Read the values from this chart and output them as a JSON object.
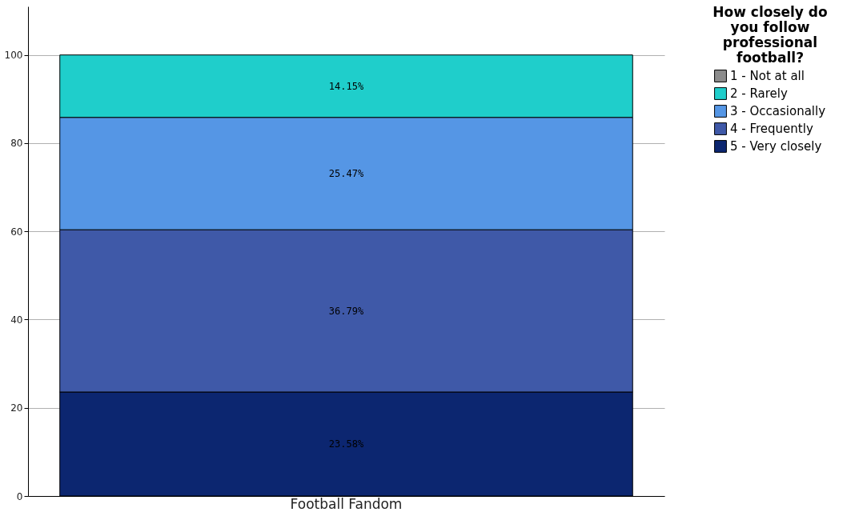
{
  "chart_data": {
    "type": "bar",
    "stacked": true,
    "categories": [
      "Football Fandom"
    ],
    "series": [
      {
        "name": "5 - Very closely",
        "color": "#0c2670",
        "values": [
          23.58
        ],
        "value_labels": [
          "23.58%"
        ]
      },
      {
        "name": "4 - Frequently",
        "color": "#3f59a8",
        "values": [
          36.79
        ],
        "value_labels": [
          "36.79%"
        ]
      },
      {
        "name": "3 - Occasionally",
        "color": "#5596e5",
        "values": [
          25.47
        ],
        "value_labels": [
          "25.47%"
        ]
      },
      {
        "name": "2 - Rarely",
        "color": "#1fcecb",
        "values": [
          14.15
        ],
        "value_labels": [
          "14.15%"
        ]
      },
      {
        "name": "1 - Not at all",
        "color": "#8c8c8c",
        "values": [
          null
        ],
        "value_labels": [
          null
        ]
      }
    ],
    "legend_title": "How closely do you follow professional football?",
    "legend": "right",
    "grid": "y",
    "ylim": [
      0,
      111
    ],
    "yticks": [
      0,
      20,
      40,
      60,
      80,
      100
    ]
  }
}
